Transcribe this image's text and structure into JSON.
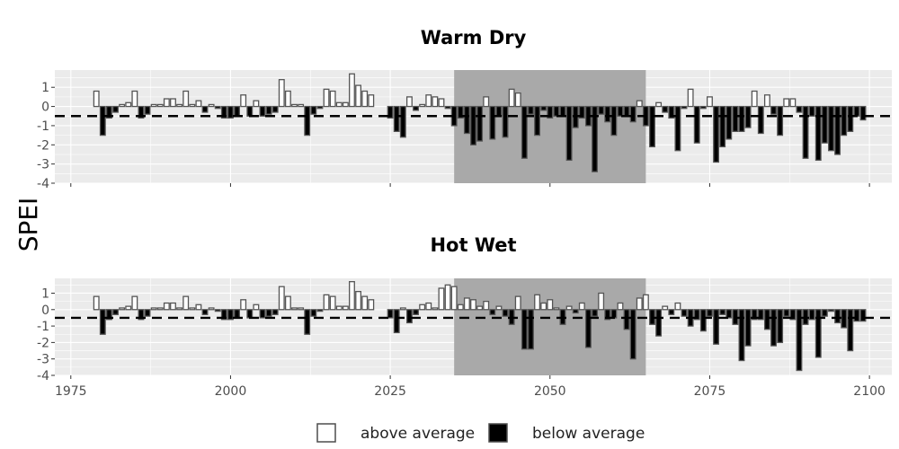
{
  "chart_data": {
    "type": "bar",
    "ylabel": "SPEI",
    "xlim": [
      1972.5,
      2103.5
    ],
    "ylim": [
      -4,
      1.9
    ],
    "x_ticks": [
      1975,
      2000,
      2025,
      2050,
      2075,
      2100
    ],
    "y_ticks": [
      1,
      0,
      -1,
      -2,
      -3,
      -4
    ],
    "threshold": -0.5,
    "highlight_range": [
      2035,
      2065
    ],
    "legend": {
      "above": "above average",
      "below": "below average",
      "position": "bottom"
    },
    "colors": {
      "above": "#ffffff",
      "below": "#000000",
      "highlight": "#a9a9a9",
      "panel": "#ebebeb"
    },
    "panels": [
      {
        "title": "Warm Dry",
        "years": [
          1979,
          1980,
          1981,
          1982,
          1983,
          1984,
          1985,
          1986,
          1987,
          1988,
          1989,
          1990,
          1991,
          1992,
          1993,
          1994,
          1995,
          1996,
          1997,
          1998,
          1999,
          2000,
          2001,
          2002,
          2003,
          2004,
          2005,
          2006,
          2007,
          2008,
          2009,
          2010,
          2011,
          2012,
          2013,
          2014,
          2015,
          2016,
          2017,
          2018,
          2019,
          2020,
          2021,
          2022,
          2025,
          2026,
          2027,
          2028,
          2029,
          2030,
          2031,
          2032,
          2033,
          2034,
          2035,
          2036,
          2037,
          2038,
          2039,
          2040,
          2041,
          2042,
          2043,
          2044,
          2045,
          2046,
          2047,
          2048,
          2049,
          2050,
          2051,
          2052,
          2053,
          2054,
          2055,
          2056,
          2057,
          2058,
          2059,
          2060,
          2061,
          2062,
          2063,
          2064,
          2065,
          2066,
          2067,
          2068,
          2069,
          2070,
          2071,
          2072,
          2073,
          2074,
          2075,
          2076,
          2077,
          2078,
          2079,
          2080,
          2081,
          2082,
          2083,
          2084,
          2085,
          2086,
          2087,
          2088,
          2089,
          2090,
          2091,
          2092,
          2093,
          2094,
          2095,
          2096,
          2097,
          2098,
          2099
        ],
        "values": [
          0.8,
          -1.5,
          -0.6,
          -0.3,
          0.1,
          0.2,
          0.8,
          -0.6,
          -0.4,
          0.1,
          0.1,
          0.4,
          0.4,
          0.1,
          0.8,
          0.1,
          0.3,
          -0.3,
          0.1,
          -0.1,
          -0.6,
          -0.6,
          -0.5,
          0.6,
          -0.5,
          0.3,
          -0.5,
          -0.4,
          -0.3,
          1.4,
          0.8,
          0.1,
          0.1,
          -1.5,
          -0.4,
          -0.1,
          0.9,
          0.8,
          0.2,
          0.2,
          1.7,
          1.1,
          0.8,
          0.6,
          -0.6,
          -1.3,
          -1.6,
          0.5,
          -0.2,
          0.1,
          0.6,
          0.5,
          0.4,
          -0.1,
          -1.0,
          -0.6,
          -1.4,
          -2.0,
          -1.8,
          0.5,
          -1.7,
          -0.5,
          -1.6,
          0.9,
          0.7,
          -2.7,
          -0.4,
          -1.5,
          -0.2,
          -0.6,
          -0.5,
          -0.5,
          -2.8,
          -1.1,
          -0.6,
          -1.0,
          -3.4,
          -0.4,
          -0.8,
          -1.5,
          -0.5,
          -0.5,
          -0.8,
          0.3,
          -1.0,
          -2.1,
          0.2,
          -0.3,
          -0.6,
          -2.3,
          -0.1,
          0.9,
          -1.9,
          -0.1,
          0.5,
          -2.9,
          -2.1,
          -1.7,
          -1.3,
          -1.3,
          -1.1,
          0.8,
          -1.4,
          0.6,
          -0.4,
          -1.5,
          0.4,
          0.4,
          -0.3,
          -2.7,
          -0.5,
          -2.8,
          -1.9,
          -2.3,
          -2.5,
          -1.5,
          -1.3,
          -0.5,
          -0.7
        ]
      },
      {
        "title": "Hot Wet",
        "years": [
          1979,
          1980,
          1981,
          1982,
          1983,
          1984,
          1985,
          1986,
          1987,
          1988,
          1989,
          1990,
          1991,
          1992,
          1993,
          1994,
          1995,
          1996,
          1997,
          1998,
          1999,
          2000,
          2001,
          2002,
          2003,
          2004,
          2005,
          2006,
          2007,
          2008,
          2009,
          2010,
          2011,
          2012,
          2013,
          2014,
          2015,
          2016,
          2017,
          2018,
          2019,
          2020,
          2021,
          2022,
          2025,
          2026,
          2027,
          2028,
          2029,
          2030,
          2031,
          2032,
          2033,
          2034,
          2035,
          2036,
          2037,
          2038,
          2039,
          2040,
          2041,
          2042,
          2043,
          2044,
          2045,
          2046,
          2047,
          2048,
          2049,
          2050,
          2051,
          2052,
          2053,
          2054,
          2055,
          2056,
          2057,
          2058,
          2059,
          2060,
          2061,
          2062,
          2063,
          2064,
          2065,
          2066,
          2067,
          2068,
          2069,
          2070,
          2071,
          2072,
          2073,
          2074,
          2075,
          2076,
          2077,
          2078,
          2079,
          2080,
          2081,
          2082,
          2083,
          2084,
          2085,
          2086,
          2087,
          2088,
          2089,
          2090,
          2091,
          2092,
          2093,
          2094,
          2095,
          2096,
          2097,
          2098,
          2099
        ],
        "values": [
          0.8,
          -1.5,
          -0.6,
          -0.3,
          0.1,
          0.2,
          0.8,
          -0.6,
          -0.4,
          0.1,
          0.1,
          0.4,
          0.4,
          0.1,
          0.8,
          0.1,
          0.3,
          -0.3,
          0.1,
          -0.1,
          -0.6,
          -0.6,
          -0.5,
          0.6,
          -0.5,
          0.3,
          -0.5,
          -0.4,
          -0.3,
          1.4,
          0.8,
          0.1,
          0.1,
          -1.5,
          -0.4,
          -0.1,
          0.9,
          0.8,
          0.2,
          0.2,
          1.7,
          1.1,
          0.8,
          0.6,
          -0.5,
          -1.4,
          0.1,
          -0.8,
          -0.3,
          0.3,
          0.4,
          0.1,
          1.3,
          1.5,
          1.4,
          0.3,
          0.7,
          0.6,
          0.2,
          0.5,
          -0.3,
          0.2,
          -0.4,
          -0.9,
          0.8,
          -2.4,
          -2.4,
          0.9,
          0.4,
          0.6,
          0.1,
          -0.9,
          0.2,
          -0.2,
          0.4,
          -2.3,
          -0.4,
          1.0,
          -0.6,
          -0.5,
          0.4,
          -1.2,
          -3.0,
          0.7,
          0.9,
          -0.9,
          -1.6,
          0.2,
          -0.3,
          0.4,
          -0.4,
          -1.0,
          -0.6,
          -1.3,
          -0.4,
          -2.1,
          -0.3,
          -0.5,
          -0.9,
          -3.1,
          -2.2,
          -0.6,
          -0.6,
          -1.2,
          -2.2,
          -2.0,
          -0.4,
          -0.6,
          -3.7,
          -0.9,
          -0.6,
          -2.9,
          -0.4,
          -0.1,
          -0.8,
          -1.1,
          -2.5,
          -0.7,
          -0.7
        ]
      }
    ]
  }
}
